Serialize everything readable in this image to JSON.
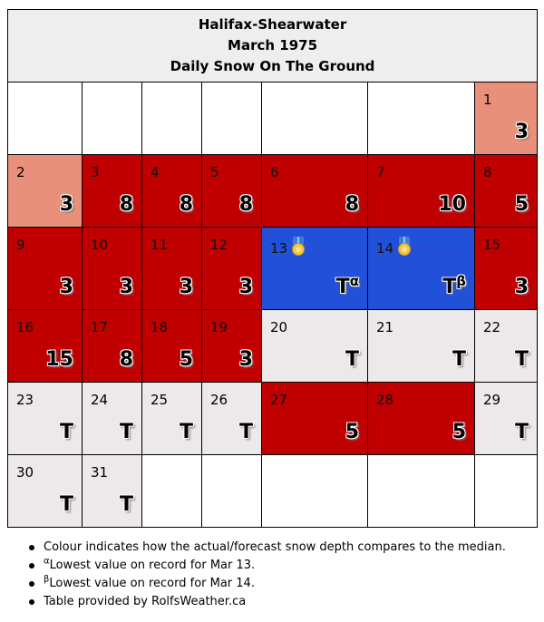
{
  "header": {
    "station": "Halifax-Shearwater",
    "month": "March 1975",
    "subtitle": "Daily Snow On The Ground"
  },
  "colors": {
    "below_median_light": "#e8907a",
    "above_median": "#c00000",
    "record_low": "#2350d8",
    "trace_grey": "#ede8ea",
    "empty": "#ffffff"
  },
  "weeks": [
    [
      null,
      null,
      null,
      null,
      null,
      null,
      {
        "day": "1",
        "value": "3",
        "sup": "",
        "style": "light",
        "medal": false
      }
    ],
    [
      {
        "day": "2",
        "value": "3",
        "sup": "",
        "style": "light",
        "medal": false
      },
      {
        "day": "3",
        "value": "8",
        "sup": "",
        "style": "red",
        "medal": false
      },
      {
        "day": "4",
        "value": "8",
        "sup": "",
        "style": "red",
        "medal": false
      },
      {
        "day": "5",
        "value": "8",
        "sup": "",
        "style": "red",
        "medal": false
      },
      {
        "day": "6",
        "value": "8",
        "sup": "",
        "style": "red",
        "medal": false
      },
      {
        "day": "7",
        "value": "10",
        "sup": "",
        "style": "red",
        "medal": false
      },
      {
        "day": "8",
        "value": "5",
        "sup": "",
        "style": "red",
        "medal": false
      }
    ],
    [
      {
        "day": "9",
        "value": "3",
        "sup": "",
        "style": "red",
        "medal": false
      },
      {
        "day": "10",
        "value": "3",
        "sup": "",
        "style": "red",
        "medal": false
      },
      {
        "day": "11",
        "value": "3",
        "sup": "",
        "style": "red",
        "medal": false
      },
      {
        "day": "12",
        "value": "3",
        "sup": "",
        "style": "red",
        "medal": false
      },
      {
        "day": "13",
        "value": "T",
        "sup": "α",
        "style": "blue",
        "medal": true
      },
      {
        "day": "14",
        "value": "T",
        "sup": "β",
        "style": "blue",
        "medal": true
      },
      {
        "day": "15",
        "value": "3",
        "sup": "",
        "style": "red",
        "medal": false
      }
    ],
    [
      {
        "day": "16",
        "value": "15",
        "sup": "",
        "style": "red",
        "medal": false
      },
      {
        "day": "17",
        "value": "8",
        "sup": "",
        "style": "red",
        "medal": false
      },
      {
        "day": "18",
        "value": "5",
        "sup": "",
        "style": "red",
        "medal": false
      },
      {
        "day": "19",
        "value": "3",
        "sup": "",
        "style": "red",
        "medal": false
      },
      {
        "day": "20",
        "value": "T",
        "sup": "",
        "style": "grey",
        "medal": false
      },
      {
        "day": "21",
        "value": "T",
        "sup": "",
        "style": "grey",
        "medal": false
      },
      {
        "day": "22",
        "value": "T",
        "sup": "",
        "style": "grey",
        "medal": false
      }
    ],
    [
      {
        "day": "23",
        "value": "T",
        "sup": "",
        "style": "grey",
        "medal": false
      },
      {
        "day": "24",
        "value": "T",
        "sup": "",
        "style": "grey",
        "medal": false
      },
      {
        "day": "25",
        "value": "T",
        "sup": "",
        "style": "grey",
        "medal": false
      },
      {
        "day": "26",
        "value": "T",
        "sup": "",
        "style": "grey",
        "medal": false
      },
      {
        "day": "27",
        "value": "5",
        "sup": "",
        "style": "red",
        "medal": false
      },
      {
        "day": "28",
        "value": "5",
        "sup": "",
        "style": "red",
        "medal": false
      },
      {
        "day": "29",
        "value": "T",
        "sup": "",
        "style": "grey",
        "medal": false
      }
    ],
    [
      {
        "day": "30",
        "value": "T",
        "sup": "",
        "style": "grey",
        "medal": false
      },
      {
        "day": "31",
        "value": "T",
        "sup": "",
        "style": "grey",
        "medal": false
      },
      null,
      null,
      null,
      null,
      null
    ]
  ],
  "notes": [
    {
      "sup": "",
      "text": "Colour indicates how the actual/forecast snow depth compares to the median."
    },
    {
      "sup": "α",
      "text": "Lowest value on record for Mar 13."
    },
    {
      "sup": "β",
      "text": "Lowest value on record for Mar 14."
    },
    {
      "sup": "",
      "text": "Table provided by RolfsWeather.ca"
    }
  ]
}
